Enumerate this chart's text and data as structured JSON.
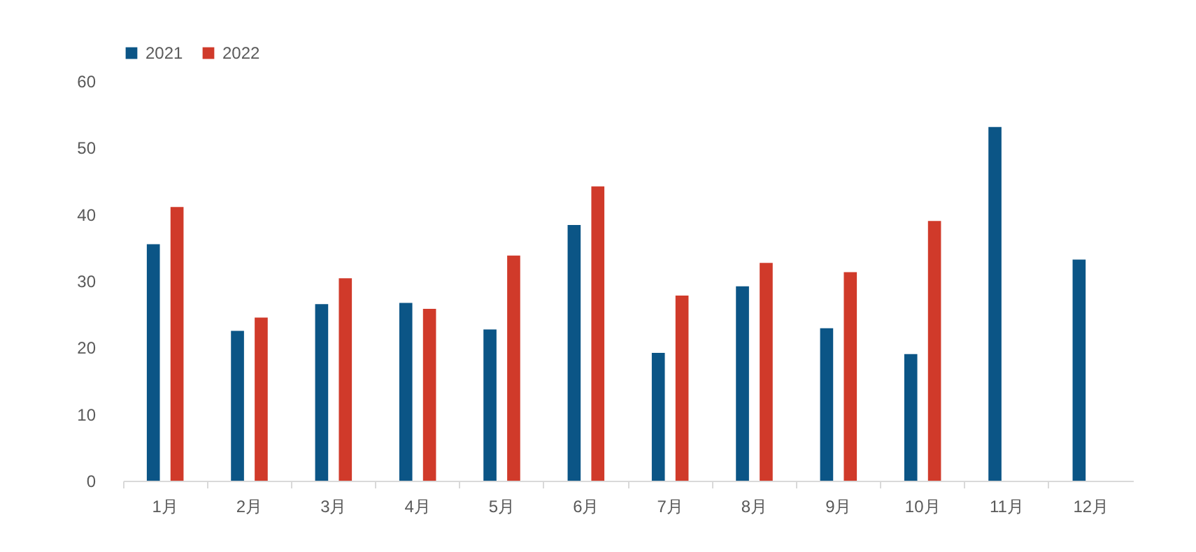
{
  "chart_data": {
    "type": "bar",
    "categories": [
      "1月",
      "2月",
      "3月",
      "4月",
      "5月",
      "6月",
      "7月",
      "8月",
      "9月",
      "10月",
      "11月",
      "12月"
    ],
    "series": [
      {
        "name": "2021",
        "color": "#0b5586",
        "values": [
          35.5,
          22.5,
          26.5,
          26.7,
          22.7,
          38.4,
          19.2,
          29.2,
          22.9,
          19.0,
          53.1,
          33.2
        ]
      },
      {
        "name": "2022",
        "color": "#d03a2a",
        "values": [
          41.1,
          24.5,
          30.4,
          25.8,
          33.8,
          44.2,
          27.8,
          32.7,
          31.3,
          39.0,
          null,
          null
        ]
      }
    ],
    "ylim": [
      0,
      60
    ],
    "yticks": [
      0,
      10,
      20,
      30,
      40,
      50,
      60
    ],
    "grid": false,
    "legend": "top"
  }
}
